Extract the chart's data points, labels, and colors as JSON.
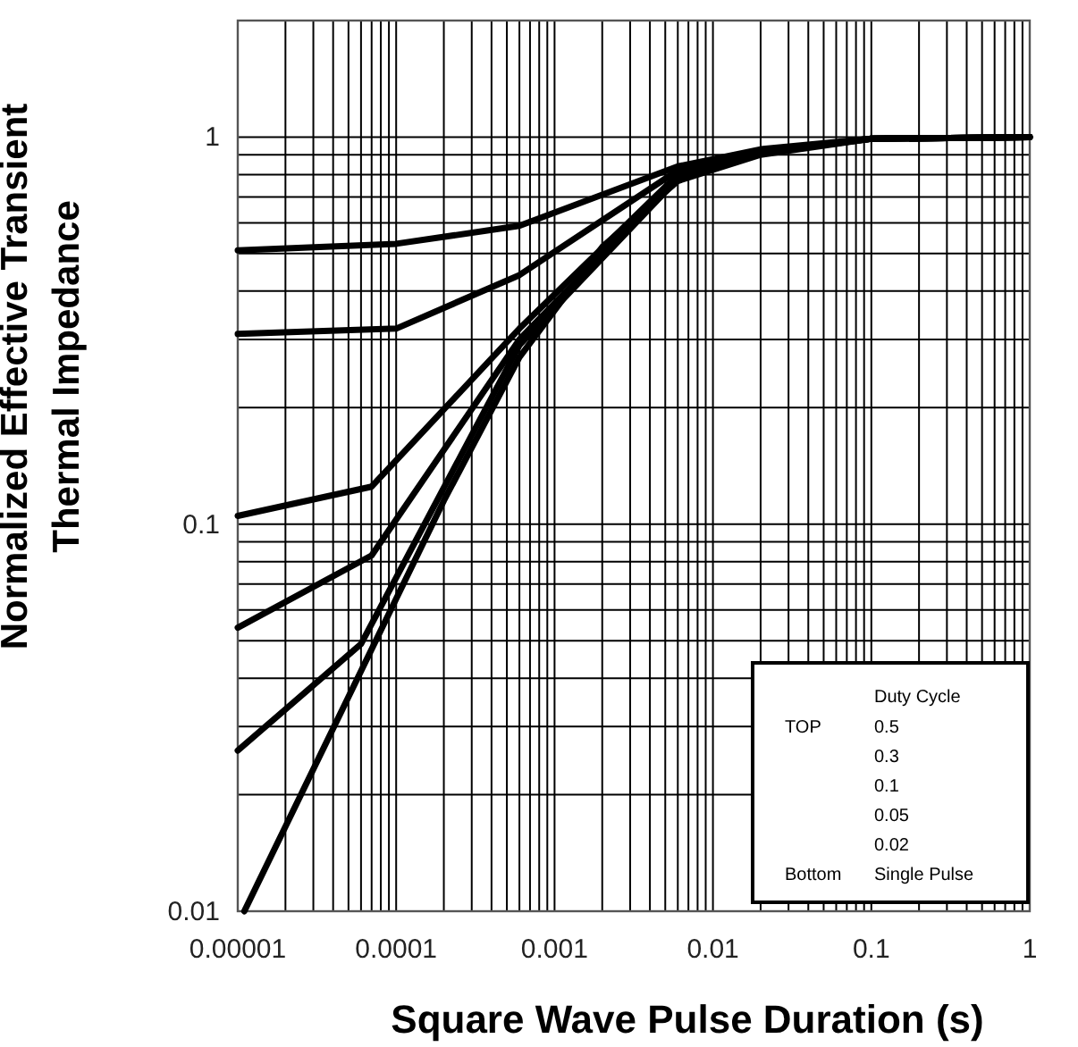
{
  "chart_data": {
    "type": "line",
    "xlabel": "Square Wave Pulse Duration (s)",
    "ylabel": "Normalized Effective Transient Thermal Impedance",
    "log": "xy",
    "grid": true,
    "annotations": [
      "Duty Cycle",
      "TOP",
      "0.5",
      "0.3",
      "0.1",
      "0.05",
      "0.02",
      "Bottom",
      "Single Pulse"
    ],
    "xlim": [
      1e-05,
      1
    ],
    "ylim": [
      0.01,
      2
    ],
    "xticks": [
      {
        "value": 1e-05,
        "label": "0.00001"
      },
      {
        "value": 2e-05,
        "label": null
      },
      {
        "value": 3e-05,
        "label": null
      },
      {
        "value": 4e-05,
        "label": null
      },
      {
        "value": 5e-05,
        "label": null
      },
      {
        "value": 6e-05,
        "label": null
      },
      {
        "value": 7e-05,
        "label": null
      },
      {
        "value": 8e-05,
        "label": null
      },
      {
        "value": 9e-05,
        "label": null
      },
      0.0001,
      {
        "value": 0.0002,
        "label": null
      },
      {
        "value": 0.0003,
        "label": null
      },
      {
        "value": 0.0004,
        "label": null
      },
      {
        "value": 0.0005,
        "label": null
      },
      {
        "value": 0.0006,
        "label": null
      },
      {
        "value": 0.0007,
        "label": null
      },
      {
        "value": 0.0008,
        "label": null
      },
      {
        "value": 0.0009,
        "label": null
      },
      0.001,
      {
        "value": 0.002,
        "label": null
      },
      {
        "value": 0.003,
        "label": null
      },
      {
        "value": 0.004,
        "label": null
      },
      {
        "value": 0.005,
        "label": null
      },
      {
        "value": 0.006,
        "label": null
      },
      {
        "value": 0.007,
        "label": null
      },
      {
        "value": 0.008,
        "label": null
      },
      {
        "value": 0.009,
        "label": null
      },
      0.01,
      {
        "value": 0.02,
        "label": null
      },
      {
        "value": 0.03,
        "label": null
      },
      {
        "value": 0.04,
        "label": null
      },
      {
        "value": 0.05,
        "label": null
      },
      {
        "value": 0.06,
        "label": null
      },
      {
        "value": 0.07,
        "label": null
      },
      {
        "value": 0.08,
        "label": null
      },
      {
        "value": 0.09,
        "label": null
      },
      0.1,
      {
        "value": 0.2,
        "label": null
      },
      {
        "value": 0.3,
        "label": null
      },
      {
        "value": 0.4,
        "label": null
      },
      {
        "value": 0.5,
        "label": null
      },
      {
        "value": 0.6,
        "label": null
      },
      {
        "value": 0.7,
        "label": null
      },
      {
        "value": 0.8,
        "label": null
      },
      {
        "value": 0.9,
        "label": null
      },
      1
    ],
    "yticks": [
      0.01,
      {
        "value": 0.02,
        "label": null
      },
      {
        "value": 0.03,
        "label": null
      },
      {
        "value": 0.04,
        "label": null
      },
      {
        "value": 0.05,
        "label": null
      },
      {
        "value": 0.06,
        "label": null
      },
      {
        "value": 0.07,
        "label": null
      },
      {
        "value": 0.08,
        "label": null
      },
      {
        "value": 0.09,
        "label": null
      },
      0.1,
      {
        "value": 0.2,
        "label": null
      },
      {
        "value": 0.3,
        "label": null
      },
      {
        "value": 0.4,
        "label": null
      },
      {
        "value": 0.5,
        "label": null
      },
      {
        "value": 0.6,
        "label": null
      },
      {
        "value": 0.7,
        "label": null
      },
      {
        "value": 0.8,
        "label": null
      },
      {
        "value": 0.9,
        "label": null
      },
      1
    ],
    "series": [
      {
        "color": "#000000",
        "x": [
          1e-05,
          0.0001,
          0.0006,
          0.006,
          0.02,
          0.1,
          1
        ],
        "values": [
          0.51,
          0.53,
          0.59,
          0.84,
          0.93,
          0.99,
          1
        ]
      },
      {
        "color": "#000000",
        "x": [
          1e-05,
          0.0001,
          0.0006,
          0.006,
          0.02,
          0.1,
          1
        ],
        "values": [
          0.31,
          0.32,
          0.44,
          0.82,
          0.92,
          0.99,
          1
        ]
      },
      {
        "color": "#000000",
        "x": [
          1e-05,
          7e-05,
          0.0006,
          0.006,
          0.02,
          0.1,
          1
        ],
        "values": [
          0.105,
          0.125,
          0.32,
          0.8,
          0.92,
          0.99,
          1
        ]
      },
      {
        "color": "#000000",
        "x": [
          1e-05,
          7e-05,
          0.0006,
          0.006,
          0.02,
          0.1,
          1
        ],
        "values": [
          0.054,
          0.083,
          0.3,
          0.79,
          0.91,
          0.99,
          1
        ]
      },
      {
        "color": "#000000",
        "x": [
          1e-05,
          6e-05,
          0.0006,
          0.006,
          0.02,
          0.1,
          1
        ],
        "values": [
          0.026,
          0.049,
          0.29,
          0.78,
          0.91,
          0.99,
          1
        ]
      },
      {
        "color": "#000000",
        "x": [
          1.1e-05,
          0.0002,
          0.0006,
          0.002,
          0.006,
          0.02,
          0.1,
          1
        ],
        "values": [
          0.01,
          0.115,
          0.27,
          0.52,
          0.77,
          0.9,
          0.99,
          1
        ]
      }
    ]
  }
}
